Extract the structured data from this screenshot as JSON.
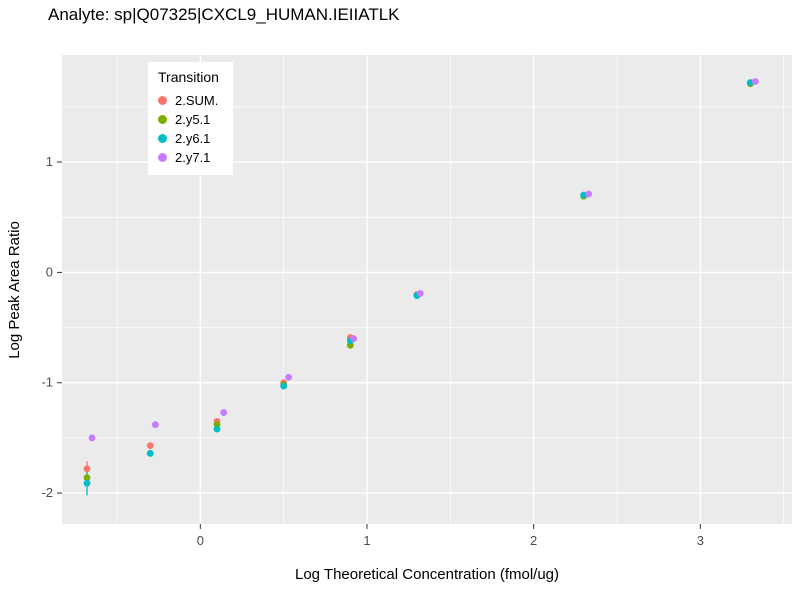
{
  "title": "Analyte: sp|Q07325|CXCL9_HUMAN.IEIIATLK",
  "chart_data": {
    "type": "scatter",
    "title": "Analyte: sp|Q07325|CXCL9_HUMAN.IEIIATLK",
    "xlabel": "Log Theoretical Concentration (fmol/ug)",
    "ylabel": "Log Peak Area Ratio",
    "xlim": [
      -0.83,
      3.55
    ],
    "ylim": [
      -2.28,
      1.97
    ],
    "x_ticks": [
      0,
      1,
      2,
      3
    ],
    "y_ticks": [
      -2,
      -1,
      0,
      1
    ],
    "x_minor": [
      -0.5,
      0.5,
      1.5,
      2.5,
      3.5
    ],
    "y_minor": [
      -1.5,
      -0.5,
      0.5,
      1.5
    ],
    "panel_bg": "#EBEBEB",
    "grid_color": "#FFFFFF",
    "legend_title": "Transition",
    "legend_position": "inside-top-left",
    "series": [
      {
        "name": "2.SUM.",
        "color": "#F8766D",
        "points": [
          {
            "x": -0.68,
            "y": -1.78,
            "err": [
              -1.71,
              -1.86
            ]
          },
          {
            "x": -0.3,
            "y": -1.57
          },
          {
            "x": 0.1,
            "y": -1.35
          },
          {
            "x": 0.5,
            "y": -1.0
          },
          {
            "x": 0.9,
            "y": -0.59
          },
          {
            "x": 1.3,
            "y": -0.2
          },
          {
            "x": 2.3,
            "y": 0.7
          },
          {
            "x": 3.3,
            "y": 1.72
          }
        ]
      },
      {
        "name": "2.y5.1",
        "color": "#7CAE00",
        "points": [
          {
            "x": -0.68,
            "y": -1.86
          },
          {
            "x": -0.3,
            "y": -1.64
          },
          {
            "x": 0.1,
            "y": -1.38
          },
          {
            "x": 0.5,
            "y": -1.02
          },
          {
            "x": 0.9,
            "y": -0.66
          },
          {
            "x": 1.3,
            "y": -0.21
          },
          {
            "x": 2.3,
            "y": 0.69
          },
          {
            "x": 3.3,
            "y": 1.71
          }
        ]
      },
      {
        "name": "2.y6.1",
        "color": "#00BFC4",
        "points": [
          {
            "x": -0.68,
            "y": -1.91,
            "err": [
              -1.8,
              -2.02
            ]
          },
          {
            "x": -0.3,
            "y": -1.64
          },
          {
            "x": 0.1,
            "y": -1.42
          },
          {
            "x": 0.5,
            "y": -1.03
          },
          {
            "x": 0.9,
            "y": -0.62
          },
          {
            "x": 1.3,
            "y": -0.21
          },
          {
            "x": 2.3,
            "y": 0.7
          },
          {
            "x": 3.3,
            "y": 1.72
          }
        ]
      },
      {
        "name": "2.y7.1",
        "color": "#C77CFF",
        "points": [
          {
            "x": -0.65,
            "y": -1.5
          },
          {
            "x": -0.27,
            "y": -1.38
          },
          {
            "x": 0.14,
            "y": -1.27
          },
          {
            "x": 0.53,
            "y": -0.95
          },
          {
            "x": 0.92,
            "y": -0.6
          },
          {
            "x": 1.32,
            "y": -0.19
          },
          {
            "x": 2.33,
            "y": 0.71
          },
          {
            "x": 3.33,
            "y": 1.73
          }
        ]
      }
    ]
  }
}
